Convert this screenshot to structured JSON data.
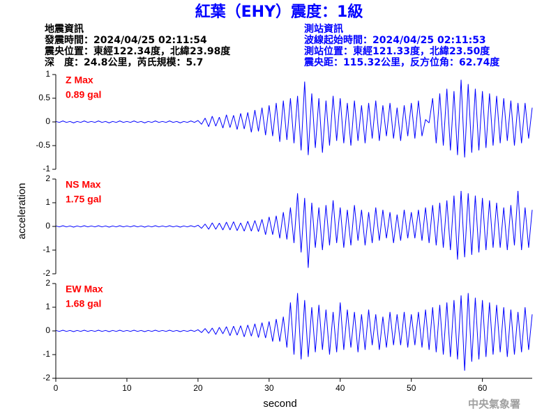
{
  "title": "紅葉（EHY）震度：1級",
  "event_info": [
    "地震資訊",
    "發震時間：2024/04/25 02:11:54",
    "震央位置：東經122.34度，北緯23.98度",
    "深　度：24.8公里，芮氏規模：5.7"
  ],
  "station_info": [
    "測站資訊",
    "波線起始時間：2024/04/25 02:11:53",
    "測站位置：東經121.33度，北緯23.50度",
    "震央距：115.32公里，反方位角：62.74度"
  ],
  "ylabel": "acceleration",
  "footer": "中央氣象署",
  "chart_data": [
    {
      "type": "line",
      "color": "#0000ff",
      "annotations": [
        "Z Max",
        "0.89 gal"
      ],
      "annotation_color": "#ff0000",
      "xlim": [
        0,
        67
      ],
      "ylim": [
        -1,
        1
      ],
      "yticks": [
        1,
        0.5,
        0,
        -0.5,
        -1
      ],
      "x": [
        0,
        0.5,
        1,
        1.5,
        2,
        2.5,
        3,
        3.5,
        4,
        4.5,
        5,
        5.5,
        6,
        6.5,
        7,
        7.5,
        8,
        8.5,
        9,
        9.5,
        10,
        10.5,
        11,
        11.5,
        12,
        12.5,
        13,
        13.5,
        14,
        14.5,
        15,
        15.5,
        16,
        16.5,
        17,
        17.5,
        18,
        18.5,
        19,
        19.5,
        20,
        20.5,
        21,
        21.5,
        22,
        22.5,
        23,
        23.5,
        24,
        24.5,
        25,
        25.5,
        26,
        26.5,
        27,
        27.5,
        28,
        28.5,
        29,
        29.5,
        30,
        30.5,
        31,
        31.5,
        32,
        32.5,
        33,
        33.5,
        34,
        34.5,
        35,
        35.5,
        36,
        36.5,
        37,
        37.5,
        38,
        38.5,
        39,
        39.5,
        40,
        40.5,
        41,
        41.5,
        42,
        42.5,
        43,
        43.5,
        44,
        44.5,
        45,
        45.5,
        46,
        46.5,
        47,
        47.5,
        48,
        48.5,
        49,
        49.5,
        50,
        50.5,
        51,
        51.5,
        52,
        52.5,
        53,
        53.5,
        54,
        54.5,
        55,
        55.5,
        56,
        56.5,
        57,
        57.5,
        58,
        58.5,
        59,
        59.5,
        60,
        60.5,
        61,
        61.5,
        62,
        62.5,
        63,
        63.5,
        64,
        64.5,
        65,
        65.5,
        66,
        66.5,
        67
      ],
      "values": [
        0.01,
        -0.01,
        0.02,
        -0.01,
        0.01,
        -0.02,
        0.01,
        -0.01,
        0.02,
        -0.01,
        0.01,
        -0.01,
        0.02,
        -0.01,
        0.01,
        -0.02,
        0.01,
        -0.01,
        0.02,
        -0.01,
        0.01,
        -0.01,
        0.02,
        -0.01,
        0.01,
        -0.02,
        0.01,
        -0.01,
        0.02,
        -0.01,
        0.01,
        -0.01,
        0.02,
        -0.01,
        0.01,
        -0.02,
        0.01,
        -0.01,
        0.02,
        -0.01,
        0.03,
        -0.05,
        0.08,
        -0.1,
        0.12,
        -0.09,
        0.1,
        -0.13,
        0.15,
        -0.12,
        0.14,
        -0.16,
        0.18,
        -0.15,
        0.2,
        -0.22,
        0.25,
        -0.2,
        0.3,
        -0.28,
        0.35,
        -0.3,
        0.4,
        -0.42,
        0.45,
        -0.38,
        0.5,
        -0.45,
        0.55,
        -0.6,
        0.85,
        -0.7,
        0.6,
        -0.55,
        0.5,
        -0.65,
        0.45,
        -0.5,
        0.55,
        -0.4,
        0.5,
        -0.45,
        0.4,
        -0.5,
        0.45,
        -0.4,
        0.35,
        -0.45,
        0.4,
        -0.35,
        0.45,
        -0.4,
        0.35,
        -0.3,
        0.4,
        -0.35,
        0.3,
        -0.4,
        0.35,
        -0.3,
        0.4,
        -0.35,
        0.45,
        -0.3,
        0.05,
        -0.02,
        0.5,
        -0.45,
        0.6,
        -0.5,
        0.7,
        -0.6,
        0.65,
        -0.7,
        0.89,
        -0.75,
        0.8,
        -0.65,
        0.7,
        -0.6,
        0.65,
        -0.55,
        0.6,
        -0.5,
        0.55,
        -0.45,
        0.5,
        -0.4,
        0.45,
        -0.5,
        0.4,
        -0.45,
        0.4,
        -0.35,
        0.3
      ]
    },
    {
      "type": "line",
      "color": "#0000ff",
      "annotations": [
        "NS Max",
        "1.75 gal"
      ],
      "annotation_color": "#ff0000",
      "xlim": [
        0,
        67
      ],
      "ylim": [
        -2,
        2
      ],
      "yticks": [
        2,
        1,
        0,
        -1,
        -2
      ],
      "x": [
        0,
        0.5,
        1,
        1.5,
        2,
        2.5,
        3,
        3.5,
        4,
        4.5,
        5,
        5.5,
        6,
        6.5,
        7,
        7.5,
        8,
        8.5,
        9,
        9.5,
        10,
        10.5,
        11,
        11.5,
        12,
        12.5,
        13,
        13.5,
        14,
        14.5,
        15,
        15.5,
        16,
        16.5,
        17,
        17.5,
        18,
        18.5,
        19,
        19.5,
        20,
        20.5,
        21,
        21.5,
        22,
        22.5,
        23,
        23.5,
        24,
        24.5,
        25,
        25.5,
        26,
        26.5,
        27,
        27.5,
        28,
        28.5,
        29,
        29.5,
        30,
        30.5,
        31,
        31.5,
        32,
        32.5,
        33,
        33.5,
        34,
        34.5,
        35,
        35.5,
        36,
        36.5,
        37,
        37.5,
        38,
        38.5,
        39,
        39.5,
        40,
        40.5,
        41,
        41.5,
        42,
        42.5,
        43,
        43.5,
        44,
        44.5,
        45,
        45.5,
        46,
        46.5,
        47,
        47.5,
        48,
        48.5,
        49,
        49.5,
        50,
        50.5,
        51,
        51.5,
        52,
        52.5,
        53,
        53.5,
        54,
        54.5,
        55,
        55.5,
        56,
        56.5,
        57,
        57.5,
        58,
        58.5,
        59,
        59.5,
        60,
        60.5,
        61,
        61.5,
        62,
        62.5,
        63,
        63.5,
        64,
        64.5,
        65,
        65.5,
        66,
        66.5,
        67
      ],
      "values": [
        0.02,
        -0.02,
        0.03,
        -0.02,
        0.02,
        -0.03,
        0.02,
        -0.02,
        0.03,
        -0.02,
        0.02,
        -0.02,
        0.03,
        -0.02,
        0.02,
        -0.03,
        0.02,
        -0.02,
        0.03,
        -0.02,
        0.02,
        -0.02,
        0.03,
        -0.02,
        0.02,
        -0.03,
        0.02,
        -0.02,
        0.03,
        -0.02,
        0.02,
        -0.02,
        0.03,
        -0.02,
        0.02,
        -0.03,
        0.02,
        -0.02,
        0.03,
        -0.02,
        0.05,
        -0.08,
        0.1,
        -0.12,
        0.15,
        -0.12,
        0.14,
        -0.15,
        0.18,
        -0.15,
        0.2,
        -0.18,
        0.15,
        -0.2,
        0.22,
        -0.2,
        0.25,
        -0.22,
        0.3,
        -0.35,
        0.4,
        -0.35,
        0.45,
        -0.5,
        0.6,
        -0.55,
        0.8,
        -0.7,
        1.4,
        -1.1,
        1.2,
        -1.75,
        1,
        -0.9,
        0.8,
        -1,
        0.9,
        -0.8,
        1.1,
        -0.7,
        0.8,
        -0.9,
        0.7,
        -0.8,
        0.9,
        -0.6,
        0.7,
        -0.8,
        0.6,
        -0.7,
        0.8,
        -0.6,
        0.7,
        -0.5,
        0.6,
        -0.7,
        0.5,
        -0.6,
        0.7,
        -0.5,
        0.6,
        -0.5,
        0.7,
        -0.6,
        0.8,
        -0.7,
        0.9,
        -0.8,
        1,
        -0.9,
        1.1,
        -1,
        1.3,
        -1.4,
        1.5,
        -1.3,
        1.4,
        -1.2,
        1.3,
        -1.1,
        1.2,
        -1,
        1.1,
        -0.9,
        1,
        -0.9,
        0.8,
        -1,
        0.9,
        -0.8,
        1.5,
        -1,
        0.8,
        -0.9,
        0.7
      ]
    },
    {
      "type": "line",
      "color": "#0000ff",
      "annotations": [
        "EW Max",
        "1.68 gal"
      ],
      "annotation_color": "#ff0000",
      "xlabel": "second",
      "xlim": [
        0,
        67
      ],
      "xticks": [
        0,
        10,
        20,
        30,
        40,
        50,
        60
      ],
      "ylim": [
        -2,
        2
      ],
      "yticks": [
        2,
        1,
        0,
        -1,
        -2
      ],
      "x": [
        0,
        0.5,
        1,
        1.5,
        2,
        2.5,
        3,
        3.5,
        4,
        4.5,
        5,
        5.5,
        6,
        6.5,
        7,
        7.5,
        8,
        8.5,
        9,
        9.5,
        10,
        10.5,
        11,
        11.5,
        12,
        12.5,
        13,
        13.5,
        14,
        14.5,
        15,
        15.5,
        16,
        16.5,
        17,
        17.5,
        18,
        18.5,
        19,
        19.5,
        20,
        20.5,
        21,
        21.5,
        22,
        22.5,
        23,
        23.5,
        24,
        24.5,
        25,
        25.5,
        26,
        26.5,
        27,
        27.5,
        28,
        28.5,
        29,
        29.5,
        30,
        30.5,
        31,
        31.5,
        32,
        32.5,
        33,
        33.5,
        34,
        34.5,
        35,
        35.5,
        36,
        36.5,
        37,
        37.5,
        38,
        38.5,
        39,
        39.5,
        40,
        40.5,
        41,
        41.5,
        42,
        42.5,
        43,
        43.5,
        44,
        44.5,
        45,
        45.5,
        46,
        46.5,
        47,
        47.5,
        48,
        48.5,
        49,
        49.5,
        50,
        50.5,
        51,
        51.5,
        52,
        52.5,
        53,
        53.5,
        54,
        54.5,
        55,
        55.5,
        56,
        56.5,
        57,
        57.5,
        58,
        58.5,
        59,
        59.5,
        60,
        60.5,
        61,
        61.5,
        62,
        62.5,
        63,
        63.5,
        64,
        64.5,
        65,
        65.5,
        66,
        66.5,
        67
      ],
      "values": [
        0.02,
        -0.02,
        0.03,
        -0.02,
        0.02,
        -0.03,
        0.02,
        -0.02,
        0.03,
        -0.02,
        0.02,
        -0.02,
        0.03,
        -0.02,
        0.02,
        -0.03,
        0.02,
        -0.02,
        0.03,
        -0.02,
        0.02,
        -0.02,
        0.03,
        -0.02,
        0.02,
        -0.03,
        0.02,
        -0.02,
        0.03,
        -0.02,
        0.02,
        -0.02,
        0.03,
        -0.02,
        0.02,
        -0.03,
        0.02,
        -0.02,
        0.03,
        -0.02,
        0.05,
        -0.07,
        0.1,
        -0.1,
        0.12,
        -0.15,
        0.15,
        -0.12,
        0.18,
        -0.2,
        0.2,
        -0.18,
        0.22,
        -0.25,
        0.25,
        -0.22,
        0.3,
        -0.28,
        0.35,
        -0.3,
        0.4,
        -0.45,
        0.5,
        -0.45,
        0.6,
        -0.7,
        1.2,
        -1,
        1.6,
        -1.2,
        1.3,
        -1.1,
        1,
        -0.9,
        1.1,
        -0.8,
        0.9,
        -1,
        0.8,
        -0.9,
        1.2,
        -0.8,
        0.9,
        -0.7,
        0.8,
        -0.9,
        0.7,
        -0.8,
        0.9,
        -0.6,
        0.7,
        -0.8,
        0.6,
        -0.7,
        0.8,
        -0.6,
        0.7,
        -0.6,
        0.8,
        -0.7,
        0.7,
        -0.6,
        0.8,
        -0.7,
        0.9,
        -0.8,
        1,
        -0.9,
        1.1,
        -1,
        1.2,
        -1.1,
        1.3,
        -1.2,
        1.5,
        -1.68,
        1.6,
        -1.3,
        1.4,
        -1.2,
        1.3,
        -1.1,
        1.2,
        -1,
        1.1,
        -0.9,
        1,
        -1.1,
        0.9,
        -1,
        0.8,
        -0.9,
        1,
        -0.8,
        0.7
      ]
    }
  ]
}
